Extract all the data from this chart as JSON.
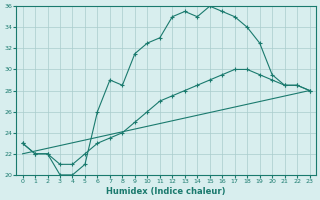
{
  "xlabel": "Humidex (Indice chaleur)",
  "bg_color": "#d8eeee",
  "grid_color": "#aacccc",
  "line_color": "#1a7a6e",
  "xlim": [
    -0.5,
    23.5
  ],
  "ylim": [
    20,
    36
  ],
  "xticks": [
    0,
    1,
    2,
    3,
    4,
    5,
    6,
    7,
    8,
    9,
    10,
    11,
    12,
    13,
    14,
    15,
    16,
    17,
    18,
    19,
    20,
    21,
    22,
    23
  ],
  "yticks": [
    20,
    22,
    24,
    26,
    28,
    30,
    32,
    34,
    36
  ],
  "line1_x": [
    0,
    1,
    2,
    3,
    4,
    5,
    6,
    7,
    8,
    9,
    10,
    11,
    12,
    13,
    14,
    15,
    16,
    17,
    18,
    19,
    20,
    21,
    22,
    23
  ],
  "line1_y": [
    23,
    22,
    22,
    20,
    20,
    21,
    26,
    29,
    28.5,
    31.5,
    32.5,
    33,
    35,
    35.5,
    35,
    36,
    35.5,
    35,
    34,
    32.5,
    29.5,
    28.5,
    28.5,
    28
  ],
  "line2_x": [
    0,
    1,
    2,
    3,
    4,
    5,
    6,
    7,
    8,
    9,
    10,
    11,
    12,
    13,
    14,
    15,
    16,
    17,
    18,
    19,
    20,
    21,
    22,
    23
  ],
  "line2_y": [
    23,
    22,
    22,
    21,
    21,
    22,
    23,
    23.5,
    24,
    25,
    26,
    27,
    27.5,
    28,
    28.5,
    29,
    29.5,
    30,
    30,
    29.5,
    29,
    28.5,
    28.5,
    28
  ],
  "line3_x": [
    0,
    23
  ],
  "line3_y": [
    22,
    28
  ]
}
